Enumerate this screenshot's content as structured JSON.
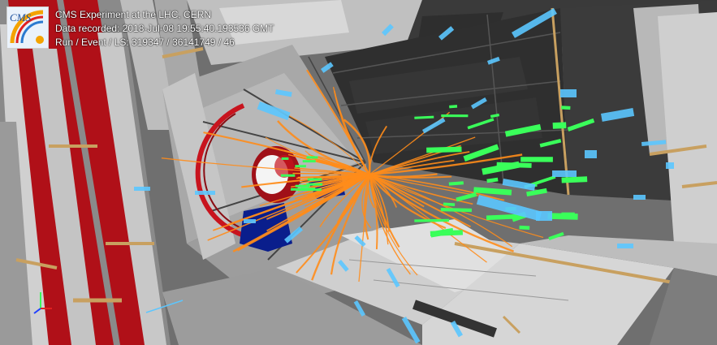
{
  "event_info": {
    "logo_text": "CMS",
    "experiment": "CMS Experiment at the LHC, CERN",
    "recorded": "Data recorded: 2018-Jul-08 19:55:40.193536 GMT",
    "run_event": "Run / Event / LS: 319347 / 36141749 / 46"
  },
  "colors": {
    "background": "#6e6e6e",
    "tracks": "#ff8c1a",
    "ecal": "#3aff5a",
    "hcal": "#5bc6ff",
    "return_yoke": "#c8141e",
    "endcap_blue": "#0a1e8c",
    "dark_panels": "#383838",
    "gold_trim": "#c8a060"
  },
  "objects": {
    "track_count_shown": 60,
    "ecal_deposits_shown": 35,
    "hcal_deposits_shown": 30
  }
}
